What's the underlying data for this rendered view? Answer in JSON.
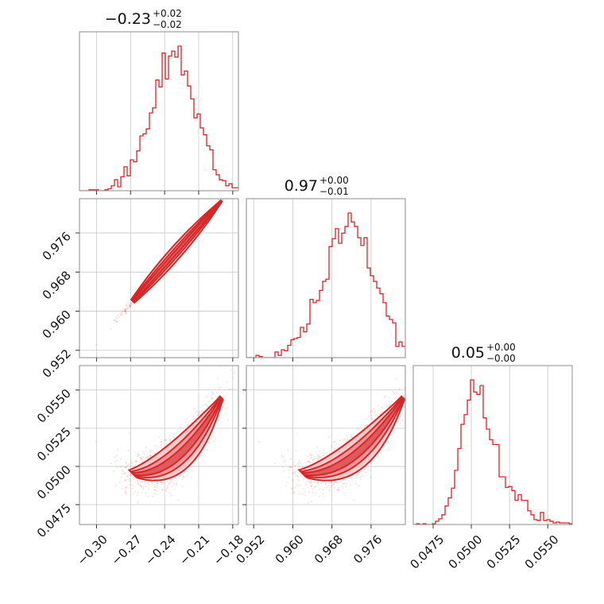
{
  "chart_data": {
    "type": "corner",
    "color": "#d62728",
    "fill_inner": "#ee8f90",
    "fill_outer": "#f6c6c6",
    "grid": true,
    "parameters": [
      {
        "key": "p0",
        "title": {
          "value": "−0.23",
          "plus": "+0.02",
          "minus": "−0.02"
        },
        "range": [
          -0.315,
          -0.175
        ],
        "ticks": [
          -0.3,
          -0.27,
          -0.24,
          -0.21,
          -0.18
        ],
        "tick_labels": [
          "−0.30",
          "−0.27",
          "−0.24",
          "−0.21",
          "−0.18"
        ],
        "hist_peak": -0.232,
        "hist_sd": 0.0205
      },
      {
        "key": "p1",
        "title": {
          "value": "0.97",
          "plus": "+0.00",
          "minus": "−0.01"
        },
        "range": [
          0.9505,
          0.983
        ],
        "ticks": [
          0.952,
          0.96,
          0.968,
          0.976
        ],
        "tick_labels": [
          "0.952",
          "0.960",
          "0.968",
          "0.976"
        ],
        "hist_peak": 0.9715,
        "hist_sd": 0.0045
      },
      {
        "key": "p2",
        "title": {
          "value": "0.05",
          "plus": "+0.00",
          "minus": "−0.00"
        },
        "range": [
          0.0462,
          0.0566
        ],
        "ticks": [
          0.0475,
          0.05,
          0.0525,
          0.055
        ],
        "tick_labels": [
          "0.0475",
          "0.0500",
          "0.0525",
          "0.0550"
        ],
        "hist_peak": 0.0501,
        "hist_sd": 0.0013
      }
    ]
  }
}
